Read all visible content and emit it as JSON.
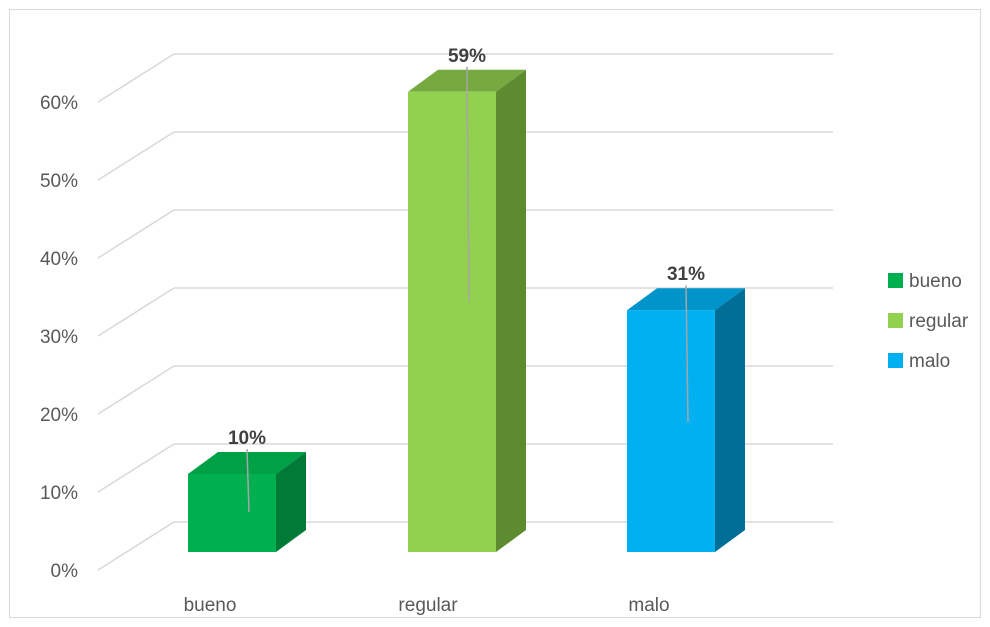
{
  "chart_data": {
    "type": "bar",
    "categories": [
      "bueno",
      "regular",
      "malo"
    ],
    "values": [
      10,
      59,
      31
    ],
    "value_labels": [
      "10%",
      "59%",
      "31%"
    ],
    "colors": {
      "bueno": {
        "front": "#00B050",
        "side": "#007A37",
        "top": "#00A047"
      },
      "regular": {
        "front": "#92D050",
        "side": "#5E8A30",
        "top": "#76A940"
      },
      "malo": {
        "front": "#00B0F0",
        "side": "#006E96",
        "top": "#0094CA"
      }
    },
    "ylim": [
      0,
      60
    ],
    "yticks": [
      0,
      10,
      20,
      30,
      40,
      50,
      60
    ],
    "ytick_labels": [
      "0%",
      "10%",
      "20%",
      "30%",
      "40%",
      "50%",
      "60%"
    ],
    "legend": [
      "bueno",
      "regular",
      "malo"
    ],
    "legend_position": "right",
    "grid": true,
    "style": "3d-column"
  }
}
